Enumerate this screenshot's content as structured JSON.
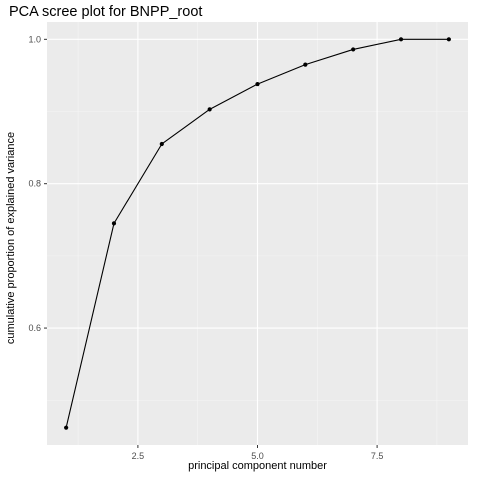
{
  "chart_data": {
    "type": "line",
    "title": "PCA scree plot for BNPP_root",
    "xlabel": "principal component number",
    "ylabel": "cumulative proportion of explained variance",
    "x": [
      1,
      2,
      3,
      4,
      5,
      6,
      7,
      8,
      9
    ],
    "series": [
      {
        "values": [
          0.462,
          0.745,
          0.855,
          0.903,
          0.938,
          0.965,
          0.986,
          1.0,
          1.0
        ]
      }
    ],
    "xlim": [
      0.6,
      9.4
    ],
    "ylim": [
      0.438,
      1.024
    ],
    "x_ticks": [
      2.5,
      5.0,
      7.5
    ],
    "x_tick_labels": [
      "2.5",
      "5.0",
      "7.5"
    ],
    "y_ticks": [
      0.6,
      0.8,
      1.0
    ],
    "y_tick_labels": [
      "0.6",
      "0.8",
      "1.0"
    ],
    "grid": true,
    "legend": "none",
    "colors": {
      "panel_background": "#EBEBEB",
      "grid_major": "#FFFFFF",
      "grid_minor": "#F5F5F5",
      "line": "#000000",
      "point": "#000000",
      "tick_label": "#4D4D4D",
      "tick_mark": "#333333"
    }
  }
}
